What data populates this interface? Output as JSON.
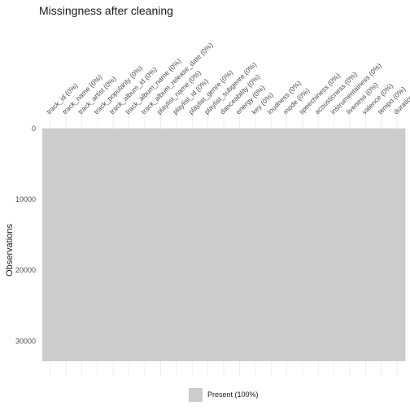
{
  "chart_data": {
    "type": "heatmap",
    "title": "Missingness after cleaning",
    "ylabel": "Observations",
    "xlabel": "",
    "columns": [
      "track_id (0%)",
      "track_name (0%)",
      "track_artist (0%)",
      "track_popularity (0%)",
      "track_album_id (0%)",
      "track_album_name (0%)",
      "track_album_release_date (0%)",
      "playlist_name (0%)",
      "playlist_id (0%)",
      "playlist_genre (0%)",
      "playlist_subgenre (0%)",
      "danceability (0%)",
      "energy (0%)",
      "key (0%)",
      "loudness (0%)",
      "mode (0%)",
      "speechiness (0%)",
      "acousticness (0%)",
      "instrumentalness (0%)",
      "liveness (0%)",
      "valence (0%)",
      "tempo (0%)",
      "duration_ms (0%)"
    ],
    "n_rows": 32833,
    "ylim": [
      0,
      32833
    ],
    "y_reversed": true,
    "yticks": [
      0,
      10000,
      20000,
      30000
    ],
    "ytick_labels": [
      "0",
      "10000",
      "20000",
      "30000"
    ],
    "missing_percent": [
      0,
      0,
      0,
      0,
      0,
      0,
      0,
      0,
      0,
      0,
      0,
      0,
      0,
      0,
      0,
      0,
      0,
      0,
      0,
      0,
      0,
      0,
      0
    ],
    "legend": [
      {
        "label": "Present (100%)",
        "color": "#cccccc"
      }
    ],
    "legend_position": "bottom",
    "grid": true,
    "colors": {
      "present": "#cccccc",
      "grid": "#ebebeb",
      "text": "#4d4d4d"
    }
  }
}
